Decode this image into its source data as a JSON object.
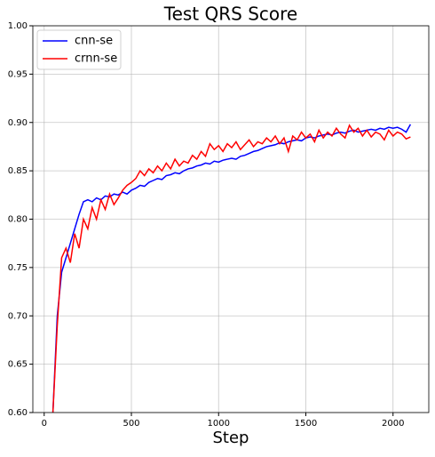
{
  "chart_data": {
    "type": "line",
    "title": "Test QRS Score",
    "x_label": "Step",
    "x": [
      50,
      75,
      100,
      125,
      150,
      175,
      200,
      225,
      250,
      275,
      300,
      325,
      350,
      375,
      400,
      425,
      450,
      475,
      500,
      525,
      550,
      575,
      600,
      625,
      650,
      675,
      700,
      725,
      750,
      775,
      800,
      825,
      850,
      875,
      900,
      925,
      950,
      975,
      1000,
      1025,
      1050,
      1075,
      1100,
      1125,
      1150,
      1175,
      1200,
      1225,
      1250,
      1275,
      1300,
      1325,
      1350,
      1375,
      1400,
      1425,
      1450,
      1475,
      1500,
      1525,
      1550,
      1575,
      1600,
      1625,
      1650,
      1675,
      1700,
      1725,
      1750,
      1775,
      1800,
      1825,
      1850,
      1875,
      1900,
      1925,
      1950,
      1975,
      2000,
      2025,
      2050,
      2075,
      2100
    ],
    "series": [
      {
        "name": "cnn-se",
        "color": "#0000ff",
        "values": [
          0.6,
          0.7,
          0.745,
          0.76,
          0.775,
          0.79,
          0.805,
          0.818,
          0.82,
          0.818,
          0.822,
          0.82,
          0.824,
          0.823,
          0.826,
          0.825,
          0.828,
          0.826,
          0.83,
          0.832,
          0.835,
          0.834,
          0.838,
          0.84,
          0.842,
          0.841,
          0.845,
          0.846,
          0.848,
          0.847,
          0.85,
          0.852,
          0.853,
          0.855,
          0.856,
          0.858,
          0.857,
          0.86,
          0.859,
          0.861,
          0.862,
          0.863,
          0.862,
          0.865,
          0.866,
          0.868,
          0.87,
          0.871,
          0.873,
          0.875,
          0.876,
          0.877,
          0.879,
          0.878,
          0.88,
          0.881,
          0.882,
          0.881,
          0.884,
          0.885,
          0.884,
          0.886,
          0.887,
          0.888,
          0.887,
          0.889,
          0.89,
          0.889,
          0.891,
          0.892,
          0.89,
          0.891,
          0.892,
          0.893,
          0.892,
          0.894,
          0.893,
          0.895,
          0.894,
          0.895,
          0.893,
          0.89,
          0.898
        ]
      },
      {
        "name": "crnn-se",
        "color": "#ff0000",
        "values": [
          0.6,
          0.69,
          0.76,
          0.77,
          0.755,
          0.785,
          0.77,
          0.8,
          0.79,
          0.812,
          0.8,
          0.82,
          0.81,
          0.826,
          0.815,
          0.822,
          0.83,
          0.835,
          0.838,
          0.842,
          0.85,
          0.845,
          0.852,
          0.848,
          0.855,
          0.85,
          0.858,
          0.852,
          0.862,
          0.855,
          0.86,
          0.858,
          0.866,
          0.862,
          0.87,
          0.865,
          0.878,
          0.872,
          0.876,
          0.87,
          0.878,
          0.874,
          0.88,
          0.872,
          0.877,
          0.882,
          0.875,
          0.88,
          0.878,
          0.884,
          0.88,
          0.886,
          0.878,
          0.884,
          0.87,
          0.886,
          0.882,
          0.89,
          0.884,
          0.888,
          0.88,
          0.892,
          0.884,
          0.89,
          0.886,
          0.894,
          0.888,
          0.884,
          0.897,
          0.89,
          0.894,
          0.886,
          0.892,
          0.885,
          0.89,
          0.888,
          0.882,
          0.892,
          0.886,
          0.89,
          0.888,
          0.883,
          0.885
        ]
      }
    ],
    "xlim": [
      -65,
      2205
    ],
    "xticks": [
      0,
      500,
      1000,
      1500,
      2000
    ],
    "ylim": [
      0.6,
      1.0
    ],
    "yticks": [
      {
        "value": 0.6,
        "label": "0.60"
      },
      0.65,
      {
        "value": 0.7,
        "label": "0.70"
      },
      0.75,
      {
        "value": 0.8,
        "label": "0.80"
      },
      0.85,
      {
        "value": 0.9,
        "label": "0.90"
      },
      0.95,
      {
        "value": 1.0,
        "label": "1.00"
      }
    ],
    "grid": true,
    "legend": "upper-left"
  }
}
